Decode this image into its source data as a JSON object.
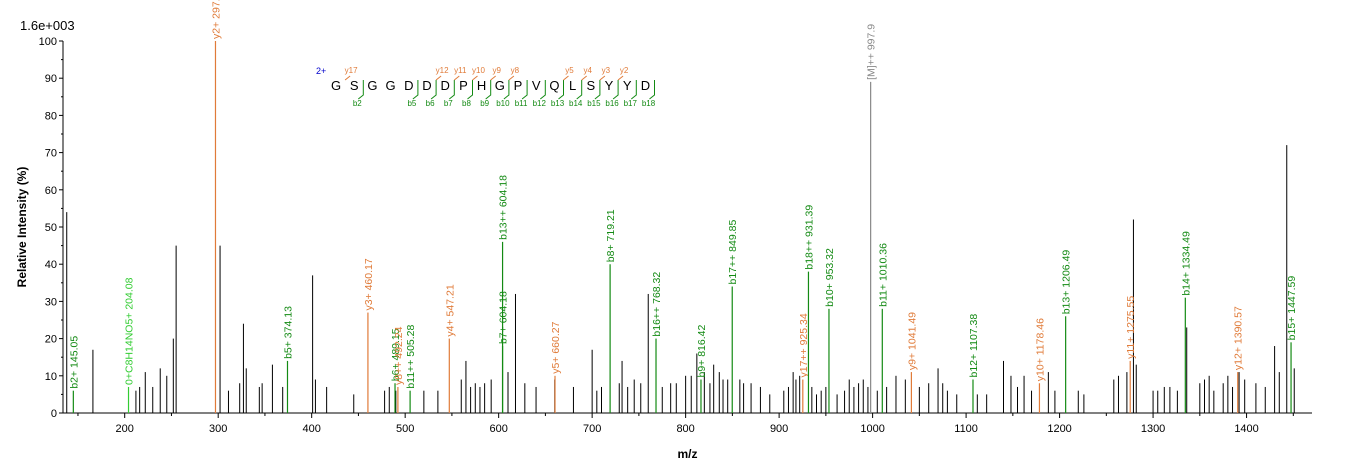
{
  "chart_data": {
    "type": "bar",
    "scale_label": "1.6e+003",
    "xlabel": "m/z",
    "ylabel": "Relative   Intensity (%)",
    "xlim": [
      134,
      1470
    ],
    "ylim": [
      0,
      100
    ],
    "x_ticks": [
      100,
      200,
      300,
      400,
      500,
      600,
      700,
      800,
      900,
      1000,
      1100,
      1200,
      1300,
      1400
    ],
    "x_tick_labels": [
      "100",
      "200",
      "300",
      "400",
      "500",
      "600",
      "700",
      "800",
      "900",
      "1000",
      "1100",
      "1200",
      "1300",
      "1400"
    ],
    "y_ticks": [
      0,
      10,
      20,
      30,
      40,
      50,
      60,
      70,
      80,
      90,
      100
    ],
    "y_tick_labels": [
      "0",
      "10",
      "20",
      "30",
      "40",
      "50",
      "60",
      "70",
      "80",
      "90",
      "100"
    ],
    "colors": {
      "b": "#138a13",
      "y": "#e07b39",
      "precursor": "#888888",
      "neutral": "#33cc33",
      "unassigned": "#000000"
    },
    "unassigned_peaks": [
      [
        138,
        54
      ],
      [
        166,
        17
      ],
      [
        212,
        6
      ],
      [
        216,
        7
      ],
      [
        222,
        11
      ],
      [
        230,
        7
      ],
      [
        238,
        12
      ],
      [
        245,
        10
      ],
      [
        252,
        20
      ],
      [
        255,
        45
      ],
      [
        302,
        45
      ],
      [
        311,
        6
      ],
      [
        323,
        8
      ],
      [
        327,
        24
      ],
      [
        330,
        12
      ],
      [
        344,
        7
      ],
      [
        347,
        8
      ],
      [
        358,
        13
      ],
      [
        369,
        7
      ],
      [
        401,
        37
      ],
      [
        404,
        9
      ],
      [
        416,
        7
      ],
      [
        445,
        5
      ],
      [
        478,
        6
      ],
      [
        483,
        7
      ],
      [
        490,
        6
      ],
      [
        520,
        6
      ],
      [
        535,
        6
      ],
      [
        560,
        9
      ],
      [
        565,
        14
      ],
      [
        570,
        7
      ],
      [
        575,
        8
      ],
      [
        580,
        7
      ],
      [
        585,
        8
      ],
      [
        592,
        9
      ],
      [
        610,
        11
      ],
      [
        618,
        32
      ],
      [
        628,
        8
      ],
      [
        640,
        7
      ],
      [
        660,
        9
      ],
      [
        680,
        7
      ],
      [
        700,
        17
      ],
      [
        705,
        6
      ],
      [
        710,
        7
      ],
      [
        729,
        8
      ],
      [
        732,
        14
      ],
      [
        738,
        7
      ],
      [
        745,
        9
      ],
      [
        752,
        8
      ],
      [
        760,
        32
      ],
      [
        775,
        7
      ],
      [
        784,
        8
      ],
      [
        790,
        8
      ],
      [
        800,
        10
      ],
      [
        806,
        10
      ],
      [
        812,
        16
      ],
      [
        820,
        11
      ],
      [
        826,
        8
      ],
      [
        830,
        13
      ],
      [
        836,
        11
      ],
      [
        840,
        9
      ],
      [
        845,
        9
      ],
      [
        858,
        9
      ],
      [
        862,
        8
      ],
      [
        870,
        8
      ],
      [
        880,
        7
      ],
      [
        890,
        5
      ],
      [
        905,
        6
      ],
      [
        910,
        7
      ],
      [
        915,
        11
      ],
      [
        918,
        9
      ],
      [
        922,
        10
      ],
      [
        935,
        7
      ],
      [
        940,
        5
      ],
      [
        945,
        6
      ],
      [
        950,
        7
      ],
      [
        962,
        5
      ],
      [
        970,
        6
      ],
      [
        975,
        9
      ],
      [
        980,
        7
      ],
      [
        985,
        8
      ],
      [
        990,
        9
      ],
      [
        995,
        7
      ],
      [
        1005,
        6
      ],
      [
        1015,
        7
      ],
      [
        1025,
        10
      ],
      [
        1035,
        9
      ],
      [
        1050,
        7
      ],
      [
        1060,
        8
      ],
      [
        1070,
        12
      ],
      [
        1075,
        8
      ],
      [
        1080,
        6
      ],
      [
        1090,
        5
      ],
      [
        1112,
        5
      ],
      [
        1122,
        5
      ],
      [
        1140,
        14
      ],
      [
        1148,
        10
      ],
      [
        1155,
        7
      ],
      [
        1162,
        10
      ],
      [
        1170,
        6
      ],
      [
        1188,
        11
      ],
      [
        1195,
        6
      ],
      [
        1220,
        6
      ],
      [
        1226,
        5
      ],
      [
        1258,
        9
      ],
      [
        1263,
        10
      ],
      [
        1272,
        11
      ],
      [
        1279,
        52
      ],
      [
        1282,
        13
      ],
      [
        1300,
        6
      ],
      [
        1305,
        6
      ],
      [
        1312,
        7
      ],
      [
        1318,
        7
      ],
      [
        1326,
        6
      ],
      [
        1336,
        23
      ],
      [
        1350,
        8
      ],
      [
        1355,
        9
      ],
      [
        1360,
        10
      ],
      [
        1365,
        6
      ],
      [
        1375,
        8
      ],
      [
        1380,
        10
      ],
      [
        1385,
        7
      ],
      [
        1392,
        11
      ],
      [
        1398,
        9
      ],
      [
        1410,
        8
      ],
      [
        1420,
        7
      ],
      [
        1430,
        18
      ],
      [
        1435,
        11
      ],
      [
        1443,
        72
      ],
      [
        1451,
        12
      ]
    ],
    "labeled_peaks": [
      {
        "mz": 145.05,
        "h": 6,
        "label": "b2+ 145.05",
        "type": "b"
      },
      {
        "mz": 204.08,
        "h": 7,
        "label": "0+C8H14NO5+ 204.08",
        "type": "neutral"
      },
      {
        "mz": 297.1,
        "h": 100,
        "label": "y2+ 297.1",
        "type": "y"
      },
      {
        "mz": 374.13,
        "h": 14,
        "label": "b5+ 374.13",
        "type": "b"
      },
      {
        "mz": 460.17,
        "h": 27,
        "label": "y3+ 460.17",
        "type": "y"
      },
      {
        "mz": 489.15,
        "h": 8,
        "label": "b6+ 489.15",
        "type": "b"
      },
      {
        "mz": 492.24,
        "h": 7,
        "label": "y8++ 492.24",
        "type": "y"
      },
      {
        "mz": 505.28,
        "h": 6,
        "label": "b11++ 505.28",
        "type": "b"
      },
      {
        "mz": 547.21,
        "h": 20,
        "label": "y4+ 547.21",
        "type": "y"
      },
      {
        "mz": 604.17,
        "h": 18,
        "label": "b7+ 604.18",
        "type": "b"
      },
      {
        "mz": 604.19,
        "h": 46,
        "label": "b13++ 604.18",
        "type": "b"
      },
      {
        "mz": 660.27,
        "h": 10,
        "label": "y5+ 660.27",
        "type": "y"
      },
      {
        "mz": 719.21,
        "h": 40,
        "label": "b8+ 719.21",
        "type": "b"
      },
      {
        "mz": 768.32,
        "h": 20,
        "label": "b16++ 768.32",
        "type": "b"
      },
      {
        "mz": 816.42,
        "h": 9,
        "label": "b9+ 816.42",
        "type": "b"
      },
      {
        "mz": 849.85,
        "h": 34,
        "label": "b17++ 849.85",
        "type": "b"
      },
      {
        "mz": 925.34,
        "h": 9,
        "label": "y17++ 925.34",
        "type": "y"
      },
      {
        "mz": 931.39,
        "h": 38,
        "label": "b18++ 931.39",
        "type": "b"
      },
      {
        "mz": 953.32,
        "h": 28,
        "label": "b10+ 953.32",
        "type": "b"
      },
      {
        "mz": 997.9,
        "h": 89,
        "label": "[M]++ 997.9",
        "type": "precursor"
      },
      {
        "mz": 1010.36,
        "h": 28,
        "label": "b11+ 1010.36",
        "type": "b"
      },
      {
        "mz": 1041.49,
        "h": 11,
        "label": "y9+ 1041.49",
        "type": "y"
      },
      {
        "mz": 1107.38,
        "h": 9,
        "label": "b12+ 1107.38",
        "type": "b"
      },
      {
        "mz": 1178.46,
        "h": 8,
        "label": "y10+ 1178.46",
        "type": "y"
      },
      {
        "mz": 1206.49,
        "h": 26,
        "label": "b13+ 1206.49",
        "type": "b"
      },
      {
        "mz": 1275.55,
        "h": 14,
        "label": "y11+ 1275.55",
        "type": "y"
      },
      {
        "mz": 1334.49,
        "h": 31,
        "label": "b14+ 1334.49",
        "type": "b"
      },
      {
        "mz": 1390.57,
        "h": 11,
        "label": "y12+ 1390.57",
        "type": "y"
      },
      {
        "mz": 1447.59,
        "h": 19,
        "label": "b15+ 1447.59",
        "type": "b"
      }
    ],
    "sequence": {
      "charge": "2+",
      "residues": [
        "G",
        "S",
        "G",
        "G",
        "D",
        "D",
        "D",
        "P",
        "H",
        "G",
        "P",
        "V",
        "Q",
        "L",
        "S",
        "Y",
        "Y",
        "D"
      ],
      "b_ions": [
        {
          "after": 2,
          "label": "b",
          "num": "2"
        },
        {
          "after": 5,
          "label": "b",
          "num": "5"
        },
        {
          "after": 6,
          "label": "b",
          "num": "6"
        },
        {
          "after": 7,
          "label": "b",
          "num": "7"
        },
        {
          "after": 8,
          "label": "b",
          "num": "8"
        },
        {
          "after": 9,
          "label": "b",
          "num": "9"
        },
        {
          "after": 10,
          "label": "b",
          "num": "10"
        },
        {
          "after": 11,
          "label": "b",
          "num": "11"
        },
        {
          "after": 12,
          "label": "b",
          "num": "12"
        },
        {
          "after": 13,
          "label": "b",
          "num": "13"
        },
        {
          "after": 14,
          "label": "b",
          "num": "14"
        },
        {
          "after": 15,
          "label": "b",
          "num": "15"
        },
        {
          "after": 16,
          "label": "b",
          "num": "16"
        },
        {
          "after": 17,
          "label": "b",
          "num": "17"
        },
        {
          "after": 18,
          "label": "b",
          "num": "18"
        }
      ],
      "y_ions": [
        {
          "after": 1,
          "label": "y",
          "num": "17"
        },
        {
          "after": 6,
          "label": "y",
          "num": "12"
        },
        {
          "after": 7,
          "label": "y",
          "num": "11"
        },
        {
          "after": 8,
          "label": "y",
          "num": "10"
        },
        {
          "after": 9,
          "label": "y",
          "num": "9"
        },
        {
          "after": 10,
          "label": "y",
          "num": "8"
        },
        {
          "after": 13,
          "label": "y",
          "num": "5"
        },
        {
          "after": 14,
          "label": "y",
          "num": "4"
        },
        {
          "after": 15,
          "label": "y",
          "num": "3"
        },
        {
          "after": 16,
          "label": "y",
          "num": "2"
        }
      ]
    }
  }
}
